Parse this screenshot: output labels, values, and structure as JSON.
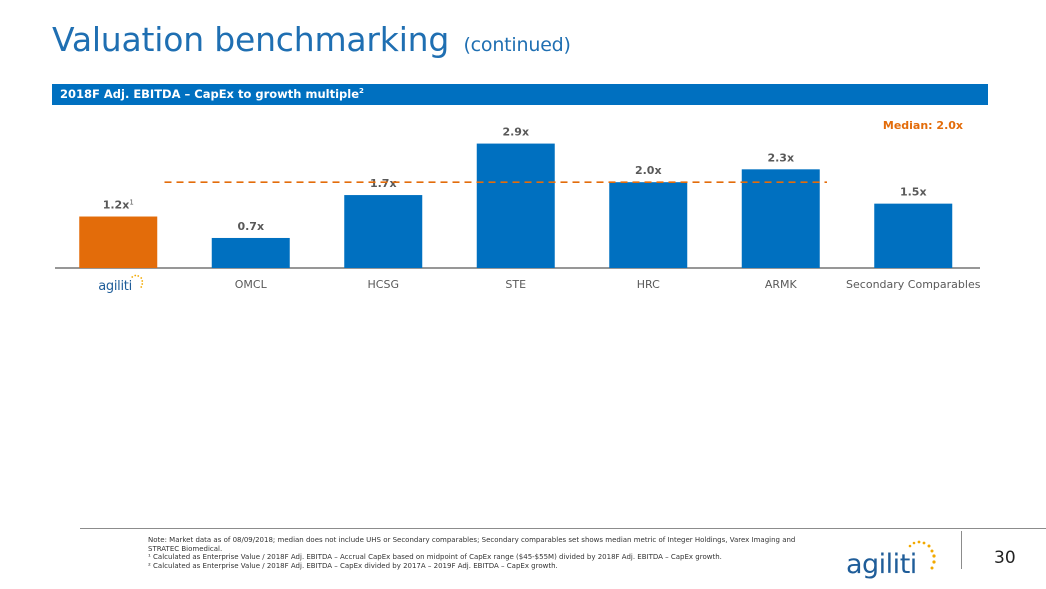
{
  "page": {
    "title": "Valuation benchmarking",
    "title_suffix": "(continued)",
    "banner_label": "2018F Adj. EBITDA – CapEx to growth multiple",
    "banner_superscript": "2",
    "page_number": "30",
    "logo_text": "agiliti"
  },
  "footnotes": {
    "note": "Note: Market data as of 08/09/2018; median does not include UHS or Secondary comparables; Secondary comparables set shows median metric of Integer Holdings, Varex Imaging and STRATEC Biomedical.",
    "fn1": "¹ Calculated as Enterprise Value / 2018F Adj. EBITDA – Accrual CapEx based on midpoint of CapEx range ($45-$55M) divided by 2018F Adj. EBITDA – CapEx growth.",
    "fn2": "² Calculated as Enterprise Value / 2018F Adj. EBITDA – CapEx divided by 2017A – 2019F Adj. EBITDA – CapEx growth."
  },
  "chart_data": {
    "type": "bar",
    "categories": [
      "agiliti",
      "OMCL",
      "HCSG",
      "STE",
      "HRC",
      "ARMK",
      "Secondary Comparables"
    ],
    "values": [
      1.2,
      0.7,
      1.7,
      2.9,
      2.0,
      2.3,
      1.5
    ],
    "value_labels": [
      "1.2x",
      "0.7x",
      "1.7x",
      "2.9x",
      "2.0x",
      "2.3x",
      "1.5x"
    ],
    "label_superscripts": [
      "1",
      "",
      "",
      "",
      "",
      "",
      ""
    ],
    "first_category_is_logo": true,
    "median": 2.0,
    "median_label": "Median: 2.0x",
    "ylim": [
      0,
      3.1
    ],
    "grid": false,
    "colors": {
      "highlight": "#e36c0a",
      "bar": "#0070c0",
      "median": "#e36c0a",
      "value_label": "#595959",
      "axis": "#595959"
    }
  }
}
